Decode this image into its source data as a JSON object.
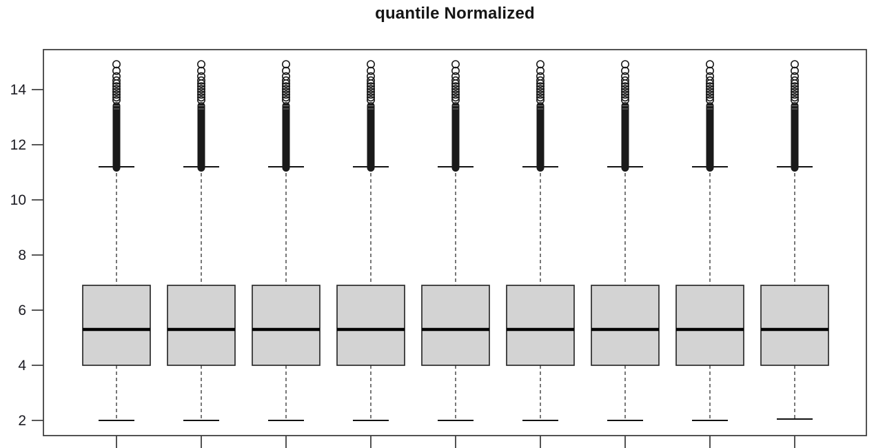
{
  "page": {
    "background_color": "#ffffff"
  },
  "chart_data": {
    "type": "boxplot",
    "title": "quantile Normalized",
    "subtitle": "",
    "n_groups": 9,
    "grid": false,
    "legend": "none",
    "x_axis": {
      "tick_count": 9,
      "labels_visible": false,
      "tick_labels": []
    },
    "y_axis": {
      "ticks": [
        2,
        4,
        6,
        8,
        10,
        12,
        14
      ],
      "range": [
        1.45,
        15.45
      ],
      "label": ""
    },
    "colors": {
      "box_fill": "#d3d3d3",
      "box_border": "#2a2a2a",
      "median": "#000000",
      "whisker": "#4a4a4a",
      "cap": "#111111",
      "outlier": "#1a1a1a",
      "frame": "#3f3f3f",
      "text": "#1b1b22"
    },
    "outlier_pattern": {
      "dense_from": 11.2,
      "dense_to": 13.55,
      "circles": [
        13.62,
        13.72,
        13.82,
        13.92,
        14.02,
        14.12,
        14.22,
        14.33,
        14.48,
        14.68,
        14.92
      ]
    },
    "series": [
      {
        "group": 1,
        "whisker_low": 2.0,
        "q1": 4.0,
        "median": 5.3,
        "q3": 6.9,
        "whisker_high": 11.2,
        "outlier_min": 11.2,
        "outlier_max": 15.0
      },
      {
        "group": 2,
        "whisker_low": 2.0,
        "q1": 4.0,
        "median": 5.3,
        "q3": 6.9,
        "whisker_high": 11.2,
        "outlier_min": 11.2,
        "outlier_max": 15.0
      },
      {
        "group": 3,
        "whisker_low": 2.0,
        "q1": 4.0,
        "median": 5.3,
        "q3": 6.9,
        "whisker_high": 11.2,
        "outlier_min": 11.2,
        "outlier_max": 15.0
      },
      {
        "group": 4,
        "whisker_low": 2.0,
        "q1": 4.0,
        "median": 5.3,
        "q3": 6.9,
        "whisker_high": 11.2,
        "outlier_min": 11.2,
        "outlier_max": 15.0
      },
      {
        "group": 5,
        "whisker_low": 2.0,
        "q1": 4.0,
        "median": 5.3,
        "q3": 6.9,
        "whisker_high": 11.2,
        "outlier_min": 11.2,
        "outlier_max": 15.0
      },
      {
        "group": 6,
        "whisker_low": 2.0,
        "q1": 4.0,
        "median": 5.3,
        "q3": 6.9,
        "whisker_high": 11.2,
        "outlier_min": 11.2,
        "outlier_max": 15.0
      },
      {
        "group": 7,
        "whisker_low": 2.0,
        "q1": 4.0,
        "median": 5.3,
        "q3": 6.9,
        "whisker_high": 11.2,
        "outlier_min": 11.2,
        "outlier_max": 15.0
      },
      {
        "group": 8,
        "whisker_low": 2.0,
        "q1": 4.0,
        "median": 5.3,
        "q3": 6.9,
        "whisker_high": 11.2,
        "outlier_min": 11.2,
        "outlier_max": 15.0
      },
      {
        "group": 9,
        "whisker_low": 2.05,
        "q1": 4.0,
        "median": 5.3,
        "q3": 6.9,
        "whisker_high": 11.2,
        "outlier_min": 11.2,
        "outlier_max": 15.0
      }
    ]
  }
}
